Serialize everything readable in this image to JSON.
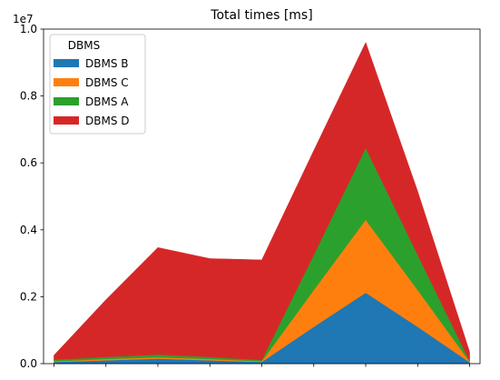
{
  "chart_data": {
    "type": "area",
    "stacked": true,
    "title": "Total times [ms]",
    "xlabel": "",
    "ylabel": "",
    "x": [
      0,
      1,
      2,
      3,
      4,
      5,
      6,
      7,
      8
    ],
    "xlim": [
      -0.2,
      8.2
    ],
    "ylim": [
      0,
      1.0
    ],
    "y_offset_label": "1e7",
    "y_ticks": [
      0.0,
      0.2,
      0.4,
      0.6,
      0.8,
      1.0
    ],
    "y_tick_labels": [
      "0.0",
      "0.2",
      "0.4",
      "0.6",
      "0.8",
      "1.0"
    ],
    "series": [
      {
        "name": "DBMS B",
        "color": "#1f77b4",
        "values": [
          0.005,
          0.01,
          0.015,
          0.01,
          0.005,
          0.11,
          0.212,
          0.11,
          0.004
        ]
      },
      {
        "name": "DBMS C",
        "color": "#ff7f0e",
        "values": [
          0.002,
          0.004,
          0.004,
          0.004,
          0.002,
          0.11,
          0.218,
          0.11,
          0.002
        ]
      },
      {
        "name": "DBMS A",
        "color": "#2ca02c",
        "values": [
          0.005,
          0.006,
          0.008,
          0.006,
          0.004,
          0.105,
          0.215,
          0.105,
          0.002
        ]
      },
      {
        "name": "DBMS D",
        "color": "#d62728",
        "values": [
          0.013,
          0.171,
          0.32,
          0.294,
          0.299,
          0.312,
          0.315,
          0.19,
          0.027
        ]
      }
    ],
    "legend": {
      "title": "DBMS",
      "placement": "top-left",
      "entries": [
        "DBMS B",
        "DBMS C",
        "DBMS A",
        "DBMS D"
      ]
    },
    "grid": false
  }
}
